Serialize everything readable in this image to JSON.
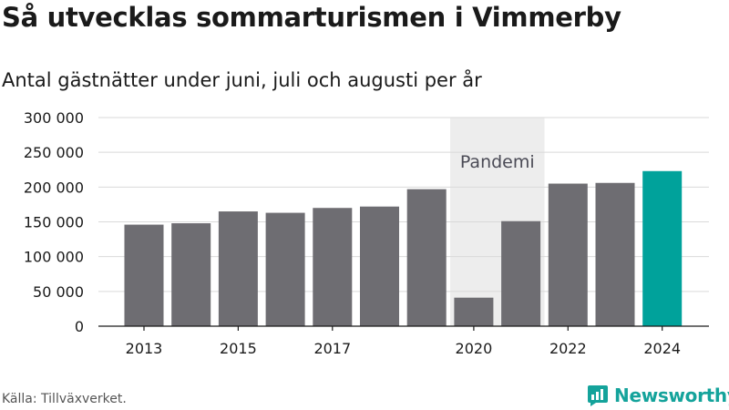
{
  "header": {
    "title": "Så utvecklas sommarturismen i Vimmerby",
    "subtitle": "Antal gästnätter under juni, juli och augusti per år"
  },
  "footer": {
    "source": "Källa: Tillväxverket.",
    "brand": "Newsworthy"
  },
  "colors": {
    "bar": "#6e6d72",
    "highlight": "#00a29b",
    "band": "#ededed",
    "brand": "#14a39b"
  },
  "chart_data": {
    "type": "bar",
    "title": "Så utvecklas sommarturismen i Vimmerby",
    "subtitle": "Antal gästnätter under juni, juli och augusti per år",
    "categories": [
      2013,
      2014,
      2015,
      2016,
      2017,
      2018,
      2019,
      2020,
      2021,
      2022,
      2023,
      2024
    ],
    "values": [
      146000,
      148000,
      165000,
      163000,
      170000,
      172000,
      197000,
      41000,
      151000,
      205000,
      206000,
      223000
    ],
    "highlight_category": 2024,
    "x_tick_labels": [
      "2013",
      "2015",
      "2017",
      "2020",
      "2022",
      "2024"
    ],
    "y_ticks": [
      0,
      50000,
      100000,
      150000,
      200000,
      250000,
      300000
    ],
    "y_tick_labels": [
      "0",
      "50 000",
      "100 000",
      "150 000",
      "200 000",
      "250 000",
      "300 000"
    ],
    "ylim": [
      0,
      300000
    ],
    "grid": true,
    "annotation": {
      "label": "Pandemi",
      "from_category": 2020,
      "to_category": 2021
    },
    "xlabel": "",
    "ylabel": ""
  }
}
